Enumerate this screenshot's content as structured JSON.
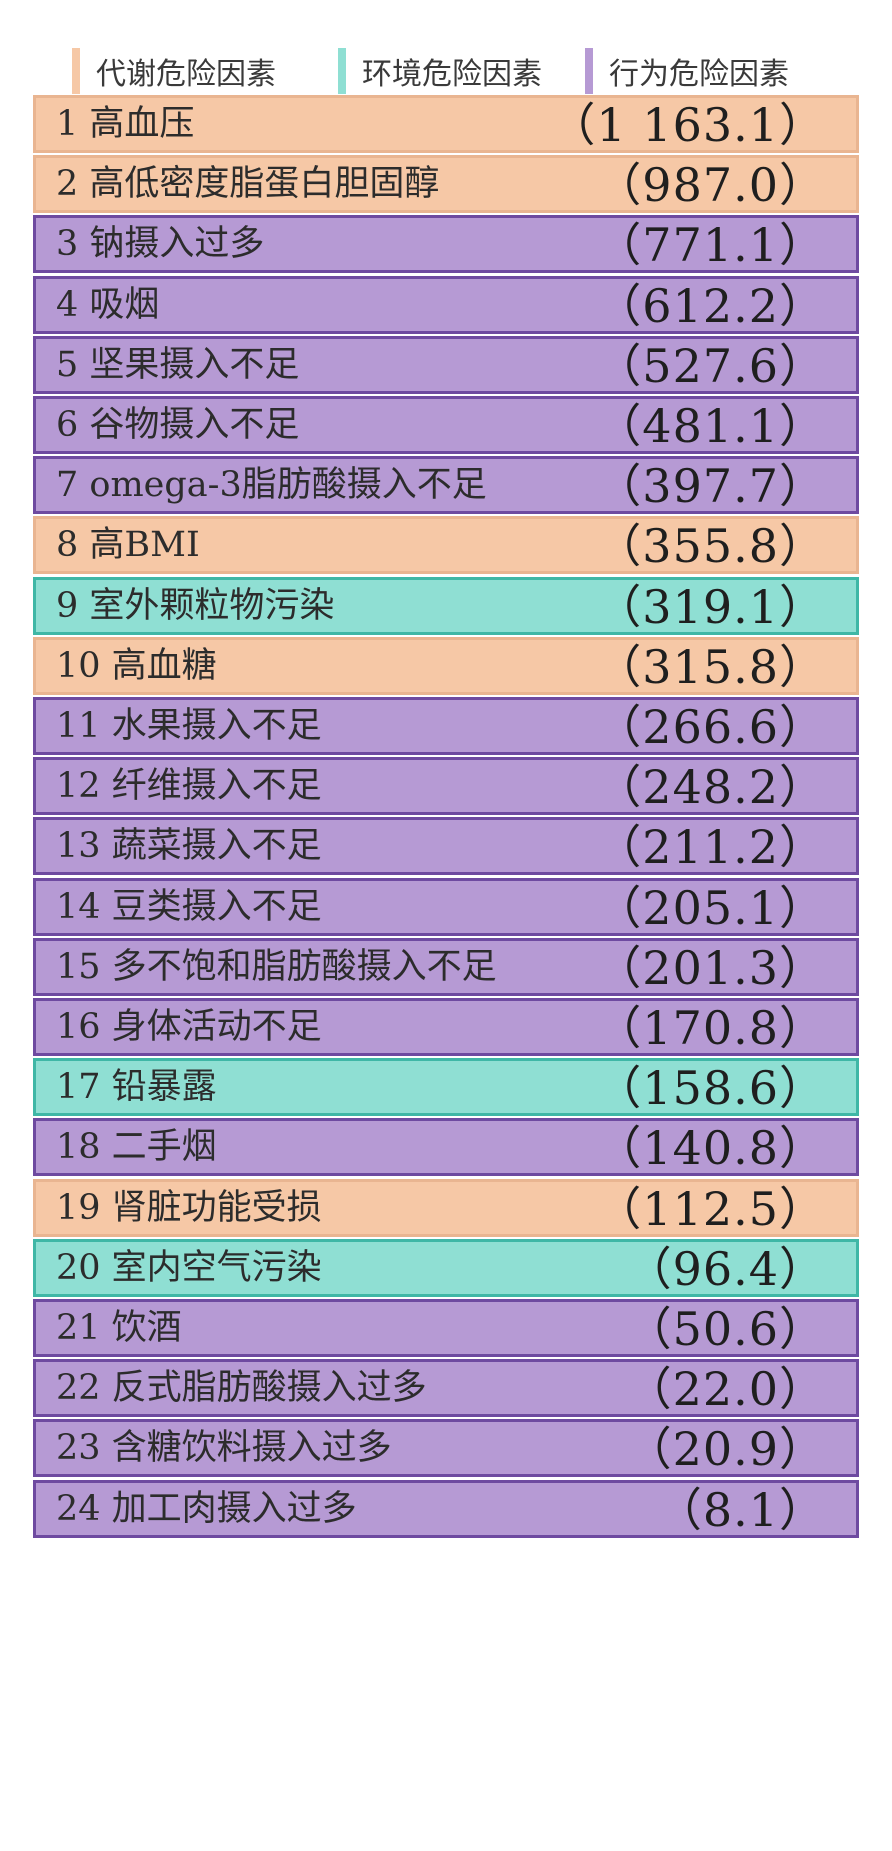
{
  "chart_data": {
    "type": "table",
    "legend": [
      {
        "name": "代谢危险因素",
        "color": "#f6c8a6",
        "border": "#e9b591"
      },
      {
        "name": "环境危险因素",
        "color": "#8fdfd3",
        "border": "#3fb7a6"
      },
      {
        "name": "行为危险因素",
        "color": "#b69ad4",
        "border": "#6e4aa0"
      }
    ],
    "rows": [
      {
        "label": "1 高血压",
        "value": "（1 163.1）",
        "value_num": 1163.1,
        "category": "代谢危险因素"
      },
      {
        "label": "2 高低密度脂蛋白胆固醇",
        "value": "（987.0）",
        "value_num": 987.0,
        "category": "代谢危险因素"
      },
      {
        "label": "3 钠摄入过多",
        "value": "（771.1）",
        "value_num": 771.1,
        "category": "行为危险因素"
      },
      {
        "label": "4 吸烟",
        "value": "（612.2）",
        "value_num": 612.2,
        "category": "行为危险因素"
      },
      {
        "label": "5 坚果摄入不足",
        "value": "（527.6）",
        "value_num": 527.6,
        "category": "行为危险因素"
      },
      {
        "label": "6 谷物摄入不足",
        "value": "（481.1）",
        "value_num": 481.1,
        "category": "行为危险因素"
      },
      {
        "label": "7 omega-3脂肪酸摄入不足",
        "value": "（397.7）",
        "value_num": 397.7,
        "category": "行为危险因素"
      },
      {
        "label": "8 高BMI",
        "value": "（355.8）",
        "value_num": 355.8,
        "category": "代谢危险因素"
      },
      {
        "label": "9 室外颗粒物污染",
        "value": "（319.1）",
        "value_num": 319.1,
        "category": "环境危险因素"
      },
      {
        "label": "10 高血糖",
        "value": "（315.8）",
        "value_num": 315.8,
        "category": "代谢危险因素"
      },
      {
        "label": "11 水果摄入不足",
        "value": "（266.6）",
        "value_num": 266.6,
        "category": "行为危险因素"
      },
      {
        "label": "12 纤维摄入不足",
        "value": "（248.2）",
        "value_num": 248.2,
        "category": "行为危险因素"
      },
      {
        "label": "13 蔬菜摄入不足",
        "value": "（211.2）",
        "value_num": 211.2,
        "category": "行为危险因素"
      },
      {
        "label": "14 豆类摄入不足",
        "value": "（205.1）",
        "value_num": 205.1,
        "category": "行为危险因素"
      },
      {
        "label": "15 多不饱和脂肪酸摄入不足",
        "value": "（201.3）",
        "value_num": 201.3,
        "category": "行为危险因素"
      },
      {
        "label": "16 身体活动不足",
        "value": "（170.8）",
        "value_num": 170.8,
        "category": "行为危险因素"
      },
      {
        "label": "17 铅暴露",
        "value": "（158.6）",
        "value_num": 158.6,
        "category": "环境危险因素"
      },
      {
        "label": "18 二手烟",
        "value": "（140.8）",
        "value_num": 140.8,
        "category": "行为危险因素"
      },
      {
        "label": "19 肾脏功能受损",
        "value": "（112.5）",
        "value_num": 112.5,
        "category": "代谢危险因素"
      },
      {
        "label": "20 室内空气污染",
        "value": "（96.4）",
        "value_num": 96.4,
        "category": "环境危险因素"
      },
      {
        "label": "21 饮酒",
        "value": "（50.6）",
        "value_num": 50.6,
        "category": "行为危险因素"
      },
      {
        "label": "22 反式脂肪酸摄入过多",
        "value": "（22.0）",
        "value_num": 22.0,
        "category": "行为危险因素"
      },
      {
        "label": "23 含糖饮料摄入过多",
        "value": "（20.9）",
        "value_num": 20.9,
        "category": "行为危险因素"
      },
      {
        "label": "24 加工肉摄入过多",
        "value": "（8.1）",
        "value_num": 8.1,
        "category": "行为危险因素"
      }
    ]
  }
}
